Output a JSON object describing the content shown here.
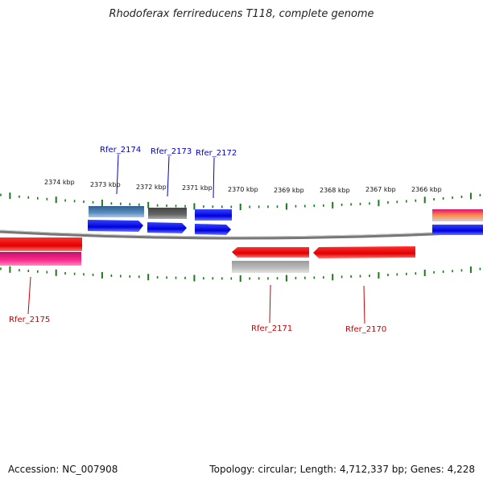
{
  "title": "Rhodoferax ferrireducens T118, complete genome",
  "footer": {
    "accession": "Accession: NC_007908",
    "summary": "Topology: circular; Length: 4,712,337 bp; Genes: 4,228"
  },
  "scale_labels": [
    "2374 kbp",
    "2373 kbp",
    "2372 kbp",
    "2371 kbp",
    "2370 kbp",
    "2369 kbp",
    "2368 kbp",
    "2367 kbp",
    "2366 kbp"
  ],
  "gene_labels": {
    "rfer_2174": "Rfer_2174",
    "rfer_2173": "Rfer_2173",
    "rfer_2172": "Rfer_2172",
    "rfer_2175": "Rfer_2175",
    "rfer_2171": "Rfer_2171",
    "rfer_2170": "Rfer_2170"
  },
  "colors": {
    "forward_label": "#0000cc",
    "reverse_label": "#cc0000",
    "tick": "#1a7a1a",
    "backbone": "#888888",
    "blue": "#0000ee",
    "red": "#ee0000",
    "magenta": "#e8107a",
    "steel": "#4a7fb0",
    "dark_gray": "#555555",
    "light_gray": "#b0b0b0"
  }
}
